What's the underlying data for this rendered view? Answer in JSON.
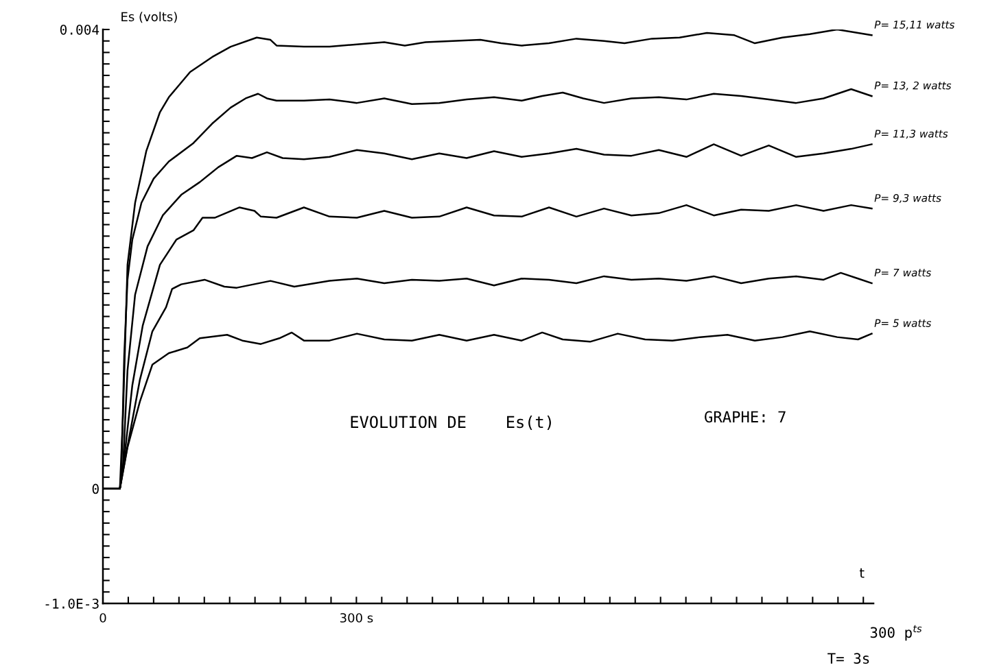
{
  "chart_data": {
    "type": "line",
    "ylabel": "Es (volts)",
    "xlabel": "t",
    "annotations": [
      "EVOLUTION DE    Es(t)",
      "GRAPHE: 7",
      "T= 3s",
      "300 p$^{ts}$"
    ],
    "xlim": [
      0,
      912
    ],
    "ylim": [
      -0.001,
      0.004
    ],
    "xticks": [
      {
        "value": 0,
        "label": "0"
      },
      {
        "value": 30,
        "label": null
      },
      {
        "value": 60,
        "label": null
      },
      {
        "value": 90,
        "label": null
      },
      {
        "value": 120,
        "label": null
      },
      {
        "value": 150,
        "label": null
      },
      {
        "value": 180,
        "label": null
      },
      {
        "value": 210,
        "label": null
      },
      {
        "value": 240,
        "label": null
      },
      {
        "value": 270,
        "label": null
      },
      {
        "value": 300,
        "label": "300 s"
      },
      {
        "value": 330,
        "label": null
      },
      {
        "value": 360,
        "label": null
      },
      {
        "value": 390,
        "label": null
      },
      {
        "value": 420,
        "label": null
      },
      {
        "value": 450,
        "label": null
      },
      {
        "value": 480,
        "label": null
      },
      {
        "value": 510,
        "label": null
      },
      {
        "value": 540,
        "label": null
      },
      {
        "value": 570,
        "label": null
      },
      {
        "value": 600,
        "label": null
      },
      {
        "value": 630,
        "label": null
      },
      {
        "value": 660,
        "label": null
      },
      {
        "value": 690,
        "label": null
      },
      {
        "value": 720,
        "label": null
      },
      {
        "value": 750,
        "label": null
      },
      {
        "value": 780,
        "label": null
      },
      {
        "value": 810,
        "label": null
      },
      {
        "value": 840,
        "label": null
      },
      {
        "value": 870,
        "label": null
      },
      {
        "value": 900,
        "label": null
      }
    ],
    "yticks": [
      {
        "value": -0.001,
        "label": "-1.0E-3"
      },
      {
        "value": -0.0009,
        "label": null
      },
      {
        "value": -0.0008,
        "label": null
      },
      {
        "value": -0.0007,
        "label": null
      },
      {
        "value": -0.0006,
        "label": null
      },
      {
        "value": -0.0005,
        "label": null
      },
      {
        "value": -0.0004,
        "label": null
      },
      {
        "value": -0.0003,
        "label": null
      },
      {
        "value": -0.0002,
        "label": null
      },
      {
        "value": -0.0001,
        "label": null
      },
      {
        "value": 0,
        "label": "0"
      },
      {
        "value": 0.0001,
        "label": null
      },
      {
        "value": 0.0002,
        "label": null
      },
      {
        "value": 0.0003,
        "label": null
      },
      {
        "value": 0.0004,
        "label": null
      },
      {
        "value": 0.0005,
        "label": null
      },
      {
        "value": 0.0006,
        "label": null
      },
      {
        "value": 0.0007,
        "label": null
      },
      {
        "value": 0.0008,
        "label": null
      },
      {
        "value": 0.0009,
        "label": null
      },
      {
        "value": 0.001,
        "label": null
      },
      {
        "value": 0.0011,
        "label": null
      },
      {
        "value": 0.0012,
        "label": null
      },
      {
        "value": 0.0013,
        "label": null
      },
      {
        "value": 0.0014,
        "label": null
      },
      {
        "value": 0.0015,
        "label": null
      },
      {
        "value": 0.0016,
        "label": null
      },
      {
        "value": 0.0017,
        "label": null
      },
      {
        "value": 0.0018,
        "label": null
      },
      {
        "value": 0.0019,
        "label": null
      },
      {
        "value": 0.002,
        "label": null
      },
      {
        "value": 0.0021,
        "label": null
      },
      {
        "value": 0.0022,
        "label": null
      },
      {
        "value": 0.0023,
        "label": null
      },
      {
        "value": 0.0024,
        "label": null
      },
      {
        "value": 0.0025,
        "label": null
      },
      {
        "value": 0.0026,
        "label": null
      },
      {
        "value": 0.0027,
        "label": null
      },
      {
        "value": 0.0028,
        "label": null
      },
      {
        "value": 0.0029,
        "label": null
      },
      {
        "value": 0.003,
        "label": null
      },
      {
        "value": 0.0031,
        "label": null
      },
      {
        "value": 0.0032,
        "label": null
      },
      {
        "value": 0.0033,
        "label": null
      },
      {
        "value": 0.0034,
        "label": null
      },
      {
        "value": 0.0035,
        "label": null
      },
      {
        "value": 0.0036,
        "label": null
      },
      {
        "value": 0.0037,
        "label": null
      },
      {
        "value": 0.0038,
        "label": null
      },
      {
        "value": 0.0039,
        "label": null
      },
      {
        "value": 0.004,
        "label": "0.004"
      }
    ],
    "grid": false,
    "legend": false,
    "marker": "none",
    "line_style": "solid",
    "series": [
      {
        "name": "P= 15,11 watts",
        "color": "#000000",
        "x": [
          0,
          9,
          20.1,
          23.7,
          29.1,
          38.1,
          51.3,
          67.5,
          78,
          103.2,
          129.3,
          151.2,
          182.1,
          198.3,
          205.5,
          237.9,
          268.2,
          300.6,
          333,
          357.3,
          381.9,
          414.3,
          446.7,
          471.3,
          495.6,
          528,
          560.4,
          593.1,
          617.4,
          649.8,
          682.5,
          714.9,
          747.3,
          771.6,
          804.3,
          836.7,
          869.1,
          893.7,
          909.9
        ],
        "values": [
          0,
          0,
          0,
          0.00063,
          0.00195,
          0.00249,
          0.00294,
          0.00328,
          0.00341,
          0.00363,
          0.00376,
          0.00385,
          0.00393,
          0.00391,
          0.00386,
          0.00385,
          0.00385,
          0.00387,
          0.00389,
          0.00386,
          0.00389,
          0.0039,
          0.00391,
          0.00388,
          0.00386,
          0.00388,
          0.00392,
          0.0039,
          0.00388,
          0.00392,
          0.00393,
          0.00397,
          0.00395,
          0.00388,
          0.00393,
          0.00396,
          0.004,
          0.00397,
          0.00395
        ]
      },
      {
        "name": "P= 13, 2 watts",
        "color": "#000000",
        "x": [
          0,
          9,
          20.1,
          21.9,
          25.2,
          29.1,
          34.8,
          45.6,
          60,
          78,
          107.1,
          129.3,
          151.2,
          168.9,
          183.6,
          194.1,
          205.5,
          237.9,
          268.2,
          300.6,
          333,
          365.7,
          398.1,
          430.5,
          462.9,
          495.6,
          519.9,
          544.2,
          568.5,
          593.1,
          625.5,
          657.9,
          690.6,
          723,
          755.4,
          788.1,
          820.5,
          852.9,
          885.6,
          909.9
        ],
        "values": [
          0,
          0,
          0,
          0.00015,
          0.00116,
          0.00182,
          0.00217,
          0.00249,
          0.0027,
          0.00285,
          0.00301,
          0.00318,
          0.00332,
          0.0034,
          0.00344,
          0.0034,
          0.00338,
          0.00338,
          0.00339,
          0.00336,
          0.0034,
          0.00335,
          0.00336,
          0.00339,
          0.00341,
          0.00338,
          0.00342,
          0.00345,
          0.0034,
          0.00336,
          0.0034,
          0.00341,
          0.00339,
          0.00344,
          0.00342,
          0.00339,
          0.00336,
          0.0034,
          0.00348,
          0.00342
        ]
      },
      {
        "name": "P= 11,3 watts",
        "color": "#000000",
        "x": [
          0,
          9,
          20.1,
          23.7,
          29.1,
          38.1,
          52.8,
          70.8,
          92.7,
          114.6,
          136.5,
          158.4,
          176.4,
          194.1,
          212.7,
          237.9,
          268.2,
          300.6,
          333,
          365.7,
          398.1,
          430.5,
          462.9,
          495.6,
          528,
          560.4,
          593.1,
          625.5,
          657.9,
          690.6,
          723,
          755.4,
          788.1,
          820.5,
          852.9,
          885.6,
          909.9
        ],
        "values": [
          0,
          0,
          0,
          0.00018,
          0.00103,
          0.00169,
          0.00211,
          0.00238,
          0.00256,
          0.00267,
          0.0028,
          0.0029,
          0.00288,
          0.00293,
          0.00288,
          0.00287,
          0.00289,
          0.00295,
          0.00292,
          0.00287,
          0.00292,
          0.00288,
          0.00294,
          0.00289,
          0.00292,
          0.00296,
          0.00291,
          0.0029,
          0.00295,
          0.00289,
          0.003,
          0.0029,
          0.00299,
          0.00289,
          0.00292,
          0.00296,
          0.003
        ]
      },
      {
        "name": "P= 9,3 watts",
        "color": "#000000",
        "x": [
          0,
          9,
          20.1,
          25.2,
          34.8,
          47.1,
          67.5,
          87,
          107.1,
          117.9,
          132.3,
          161.7,
          179.4,
          186.9,
          205.5,
          237.9,
          268.2,
          300.6,
          333,
          365.7,
          398.1,
          430.5,
          462.9,
          495.6,
          528,
          560.4,
          593.1,
          625.5,
          657.9,
          690.6,
          723,
          755.4,
          788.1,
          820.5,
          852.9,
          885.6,
          909.9
        ],
        "values": [
          0,
          0,
          0,
          0.00026,
          0.0009,
          0.00142,
          0.00195,
          0.00217,
          0.00225,
          0.00236,
          0.00236,
          0.00245,
          0.00242,
          0.00237,
          0.00236,
          0.00245,
          0.00237,
          0.00236,
          0.00242,
          0.00236,
          0.00237,
          0.00245,
          0.00238,
          0.00237,
          0.00245,
          0.00237,
          0.00244,
          0.00238,
          0.0024,
          0.00247,
          0.00238,
          0.00243,
          0.00242,
          0.00247,
          0.00242,
          0.00247,
          0.00244
        ]
      },
      {
        "name": "P= 7 watts",
        "color": "#000000",
        "x": [
          0,
          9,
          20.1,
          27.6,
          43.8,
          58.5,
          74.7,
          81.9,
          92.7,
          120.3,
          143.7,
          158.4,
          198.3,
          226.5,
          268.2,
          300.6,
          333,
          365.7,
          398.1,
          430.5,
          462.9,
          495.6,
          528,
          560.4,
          593.1,
          625.5,
          657.9,
          690.6,
          723,
          755.4,
          788.1,
          820.5,
          852.9,
          873.3,
          893.7,
          909.9
        ],
        "values": [
          0,
          0,
          0,
          0.00031,
          0.00095,
          0.00137,
          0.00158,
          0.00174,
          0.00178,
          0.00182,
          0.00176,
          0.00175,
          0.00181,
          0.00176,
          0.00181,
          0.00183,
          0.00179,
          0.00182,
          0.00181,
          0.00183,
          0.00177,
          0.00183,
          0.00182,
          0.00179,
          0.00185,
          0.00182,
          0.00183,
          0.00181,
          0.00185,
          0.00179,
          0.00183,
          0.00185,
          0.00182,
          0.00188,
          0.00183,
          0.00179
        ]
      },
      {
        "name": "P= 5 watts",
        "color": "#000000",
        "x": [
          0,
          9,
          20.1,
          29.1,
          43.8,
          58.5,
          78,
          99.9,
          114.6,
          147,
          165,
          186.9,
          208.8,
          223.5,
          237.9,
          268.2,
          300.6,
          333,
          365.7,
          398.1,
          430.5,
          462.9,
          495.6,
          519.9,
          544.2,
          576.6,
          609.3,
          641.7,
          674.1,
          706.8,
          739.2,
          771.6,
          804.3,
          836.7,
          869.1,
          893.7,
          909.9
        ],
        "values": [
          0,
          0,
          0,
          0.00036,
          0.00076,
          0.00108,
          0.00118,
          0.00123,
          0.00131,
          0.00134,
          0.00129,
          0.00126,
          0.00131,
          0.00136,
          0.00129,
          0.00129,
          0.00135,
          0.0013,
          0.00129,
          0.00134,
          0.00129,
          0.00134,
          0.00129,
          0.00136,
          0.0013,
          0.00128,
          0.00135,
          0.0013,
          0.00129,
          0.00132,
          0.00134,
          0.00129,
          0.00132,
          0.00137,
          0.00132,
          0.0013,
          0.00135
        ]
      }
    ]
  }
}
